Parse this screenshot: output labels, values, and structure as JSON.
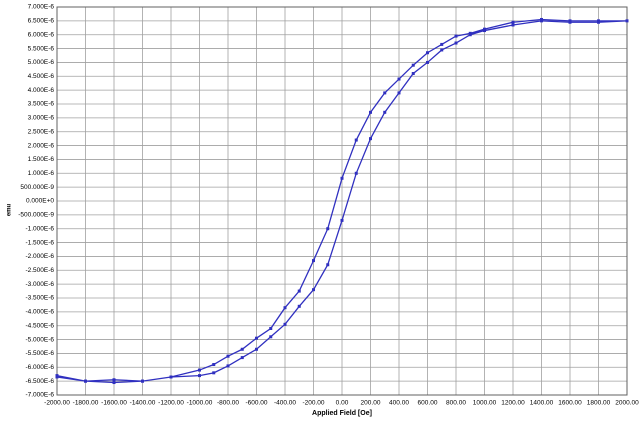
{
  "chart_data": {
    "type": "line",
    "x_label": "Applied Field [Oe]",
    "y_label": "emu",
    "color": "#3030c0",
    "grid": true,
    "x": [
      -2000,
      -1800,
      -1600,
      -1400,
      -1200,
      -1000,
      -900,
      -800,
      -700,
      -600,
      -500,
      -400,
      -300,
      -200,
      -100,
      0,
      100,
      200,
      300,
      400,
      500,
      600,
      700,
      800,
      900,
      1000,
      1200,
      1400,
      1600,
      1800,
      2000,
      1800,
      1600,
      1400,
      1200,
      1000,
      900,
      800,
      700,
      600,
      500,
      400,
      300,
      200,
      100,
      0,
      -100,
      -200,
      -300,
      -400,
      -500,
      -600,
      -700,
      -800,
      -900,
      -1000,
      -1200,
      -1400,
      -1600,
      -1800,
      -2000
    ],
    "values": [
      -6.3e-06,
      -6.5e-06,
      -6.45e-06,
      -6.5e-06,
      -6.35e-06,
      -6.3e-06,
      -6.2e-06,
      -5.95e-06,
      -5.65e-06,
      -5.35e-06,
      -4.9e-06,
      -4.45e-06,
      -3.8e-06,
      -3.2e-06,
      -2.3e-06,
      -7e-07,
      1e-06,
      2.25e-06,
      3.2e-06,
      3.9e-06,
      4.6e-06,
      5e-06,
      5.45e-06,
      5.7e-06,
      6e-06,
      6.15e-06,
      6.35e-06,
      6.5e-06,
      6.45e-06,
      6.45e-06,
      6.5e-06,
      6.5e-06,
      6.5e-06,
      6.55e-06,
      6.45e-06,
      6.2e-06,
      6.05e-06,
      5.95e-06,
      5.65e-06,
      5.35e-06,
      4.9e-06,
      4.4e-06,
      3.9e-06,
      3.2e-06,
      2.2e-06,
      8.2e-07,
      -1e-06,
      -2.15e-06,
      -3.25e-06,
      -3.85e-06,
      -4.6e-06,
      -4.95e-06,
      -5.35e-06,
      -5.6e-06,
      -5.9e-06,
      -6.1e-06,
      -6.35e-06,
      -6.5e-06,
      -6.55e-06,
      -6.5e-06,
      -6.35e-06
    ],
    "xlim": [
      -2000,
      2000
    ],
    "xticks": [
      {
        "value": -2000,
        "label": "-2000.00"
      },
      {
        "value": -1800,
        "label": "-1800.00"
      },
      {
        "value": -1600,
        "label": "-1600.00"
      },
      {
        "value": -1400,
        "label": "-1400.00"
      },
      {
        "value": -1200,
        "label": "-1200.00"
      },
      {
        "value": -1000,
        "label": "-1000.00"
      },
      {
        "value": -800,
        "label": "-800.00"
      },
      {
        "value": -600,
        "label": "-600.00"
      },
      {
        "value": -400,
        "label": "-400.00"
      },
      {
        "value": -200,
        "label": "-200.00"
      },
      {
        "value": 0,
        "label": "0.00"
      },
      {
        "value": 200,
        "label": "200.00"
      },
      {
        "value": 400,
        "label": "400.00"
      },
      {
        "value": 600,
        "label": "600.00"
      },
      {
        "value": 800,
        "label": "800.00"
      },
      {
        "value": 1000,
        "label": "1000.00"
      },
      {
        "value": 1200,
        "label": "1200.00"
      },
      {
        "value": 1400,
        "label": "1400.00"
      },
      {
        "value": 1600,
        "label": "1600.00"
      },
      {
        "value": 1800,
        "label": "1800.00"
      },
      {
        "value": 2000,
        "label": "2000.00"
      }
    ],
    "ylim": [
      -7e-06,
      7e-06
    ],
    "yticks": [
      {
        "value": 7e-06,
        "label": "7.000E-6"
      },
      {
        "value": 6.5e-06,
        "label": "6.500E-6"
      },
      {
        "value": 6e-06,
        "label": "6.000E-6"
      },
      {
        "value": 5.5e-06,
        "label": "5.500E-6"
      },
      {
        "value": 5e-06,
        "label": "5.000E-6"
      },
      {
        "value": 4.5e-06,
        "label": "4.500E-6"
      },
      {
        "value": 4e-06,
        "label": "4.000E-6"
      },
      {
        "value": 3.5e-06,
        "label": "3.500E-6"
      },
      {
        "value": 3e-06,
        "label": "3.000E-6"
      },
      {
        "value": 2.5e-06,
        "label": "2.500E-6"
      },
      {
        "value": 2e-06,
        "label": "2.000E-6"
      },
      {
        "value": 1.5e-06,
        "label": "1.500E-6"
      },
      {
        "value": 1e-06,
        "label": "1.000E-6"
      },
      {
        "value": 5e-07,
        "label": "500.000E-9"
      },
      {
        "value": 0,
        "label": "0.000E+0"
      },
      {
        "value": -5e-07,
        "label": "-500.000E-9"
      },
      {
        "value": -1e-06,
        "label": "-1.000E-6"
      },
      {
        "value": -1.5e-06,
        "label": "-1.500E-6"
      },
      {
        "value": -2e-06,
        "label": "-2.000E-6"
      },
      {
        "value": -2.5e-06,
        "label": "-2.500E-6"
      },
      {
        "value": -3e-06,
        "label": "-3.000E-6"
      },
      {
        "value": -3.5e-06,
        "label": "-3.500E-6"
      },
      {
        "value": -4e-06,
        "label": "-4.000E-6"
      },
      {
        "value": -4.5e-06,
        "label": "-4.500E-6"
      },
      {
        "value": -5e-06,
        "label": "-5.000E-6"
      },
      {
        "value": -5.5e-06,
        "label": "-5.500E-6"
      },
      {
        "value": -6e-06,
        "label": "-6.000E-6"
      },
      {
        "value": -6.5e-06,
        "label": "-6.500E-6"
      },
      {
        "value": -7e-06,
        "label": "-7.000E-6"
      }
    ]
  }
}
